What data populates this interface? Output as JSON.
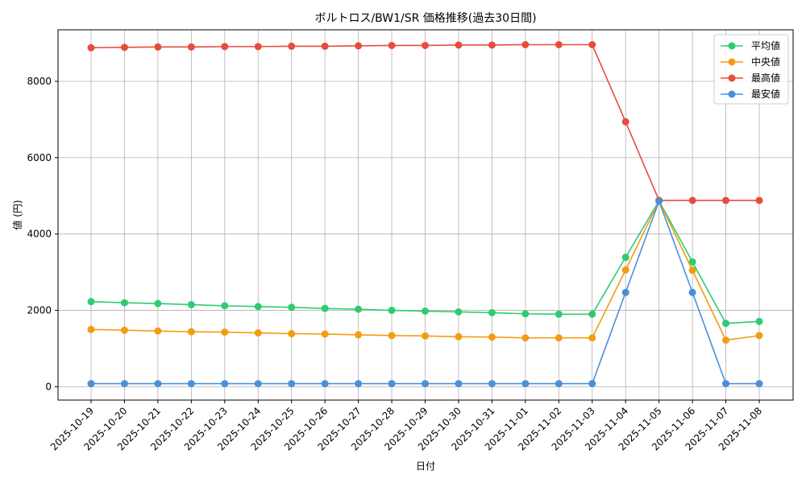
{
  "chart_data": {
    "type": "line",
    "title": "ボルトロス/BW1/SR 価格推移(過去30日間)",
    "xlabel": "日付",
    "ylabel": "値 (円)",
    "ylim": [
      -350,
      9350
    ],
    "yticks": [
      0,
      2000,
      4000,
      6000,
      8000
    ],
    "grid": true,
    "legend_position": "top-right",
    "categories": [
      "2025-10-19",
      "2025-10-20",
      "2025-10-21",
      "2025-10-22",
      "2025-10-23",
      "2025-10-24",
      "2025-10-25",
      "2025-10-26",
      "2025-10-27",
      "2025-10-28",
      "2025-10-29",
      "2025-10-30",
      "2025-10-31",
      "2025-11-01",
      "2025-11-02",
      "2025-11-03",
      "2025-11-04",
      "2025-11-05",
      "2025-11-06",
      "2025-11-07",
      "2025-11-08"
    ],
    "series": [
      {
        "name": "平均値",
        "color": "#2ecc71",
        "values": [
          2230,
          2200,
          2180,
          2150,
          2120,
          2100,
          2080,
          2050,
          2030,
          2000,
          1980,
          1960,
          1940,
          1910,
          1900,
          1900,
          3390,
          4870,
          3270,
          1660,
          1710
        ]
      },
      {
        "name": "中央値",
        "color": "#f39c12",
        "values": [
          1500,
          1480,
          1460,
          1440,
          1430,
          1410,
          1390,
          1380,
          1360,
          1340,
          1330,
          1310,
          1300,
          1280,
          1280,
          1280,
          3060,
          4870,
          3050,
          1220,
          1340
        ]
      },
      {
        "name": "最高値",
        "color": "#e74c3c",
        "values": [
          8880,
          8890,
          8900,
          8900,
          8910,
          8910,
          8920,
          8920,
          8930,
          8940,
          8940,
          8950,
          8950,
          8960,
          8960,
          8960,
          6940,
          4880,
          4880,
          4880,
          4880
        ]
      },
      {
        "name": "最安値",
        "color": "#4a90d9",
        "values": [
          80,
          80,
          80,
          80,
          80,
          80,
          80,
          80,
          80,
          80,
          80,
          80,
          80,
          80,
          80,
          80,
          2470,
          4860,
          2470,
          80,
          80
        ]
      }
    ]
  }
}
